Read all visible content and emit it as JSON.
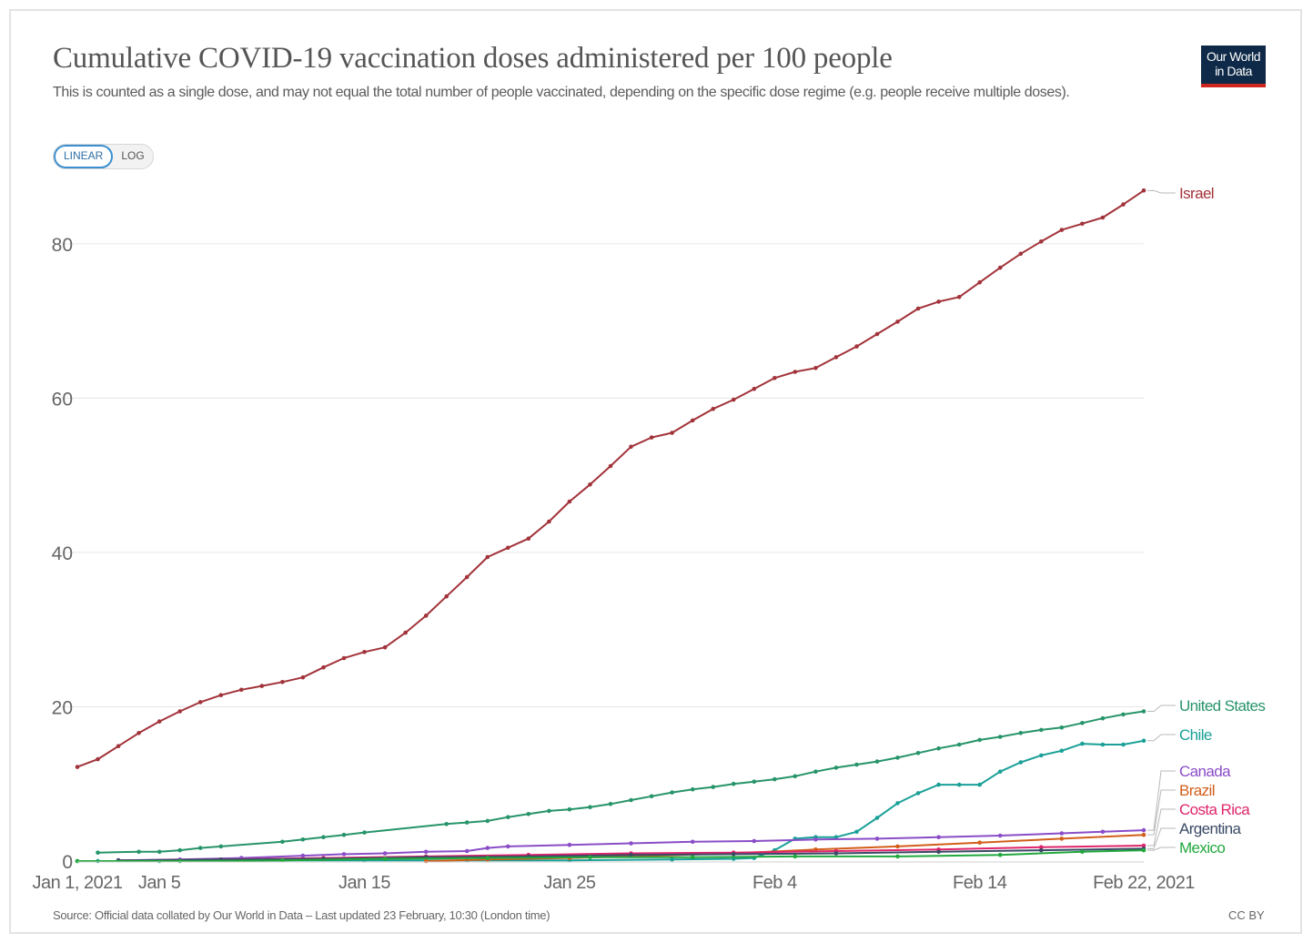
{
  "header": {
    "title": "Cumulative COVID-19 vaccination doses administered per 100 people",
    "subtitle": "This is counted as a single dose, and may not equal the total number of people vaccinated, depending on the specific dose regime (e.g. people receive multiple doses).",
    "logo_line1": "Our World",
    "logo_line2": "in Data"
  },
  "controls": {
    "linear_label": "LINEAR",
    "log_label": "LOG"
  },
  "footer": {
    "source": "Source: Official data collated by Our World in Data – Last updated 23 February, 10:30 (London time)",
    "license": "CC BY"
  },
  "colors": {
    "Israel": "#a2333a",
    "United States": "#27946a",
    "Chile": "#1aa097",
    "Canada": "#8a4dc7",
    "Brazil": "#d25e1a",
    "Costa Rica": "#e0246b",
    "Argentina": "#3a4a66",
    "Mexico": "#21a83d",
    "grid": "#e6e6e6",
    "axis_text": "#666666"
  },
  "chart_data": {
    "type": "line",
    "title": "Cumulative COVID-19 vaccination doses administered per 100 people",
    "xlabel": "",
    "ylabel": "",
    "ylim": [
      0,
      88
    ],
    "yticks": [
      0,
      20,
      40,
      60,
      80
    ],
    "xlim": [
      "2021-01-01",
      "2021-02-22"
    ],
    "xticks": [
      {
        "date": "2021-01-01",
        "label": "Jan 1, 2021"
      },
      {
        "date": "2021-01-05",
        "label": "Jan 5"
      },
      {
        "date": "2021-01-15",
        "label": "Jan 15"
      },
      {
        "date": "2021-01-25",
        "label": "Jan 25"
      },
      {
        "date": "2021-02-04",
        "label": "Feb 4"
      },
      {
        "date": "2021-02-14",
        "label": "Feb 14"
      },
      {
        "date": "2021-02-22",
        "label": "Feb 22, 2021"
      }
    ],
    "grid": true,
    "legend": "right",
    "scale_options": [
      "LINEAR",
      "LOG"
    ],
    "active_scale": "LINEAR",
    "series": [
      {
        "name": "Israel",
        "points": [
          [
            "2021-01-01",
            12.2
          ],
          [
            "2021-01-02",
            13.2
          ],
          [
            "2021-01-03",
            14.9
          ],
          [
            "2021-01-04",
            16.6
          ],
          [
            "2021-01-05",
            18.1
          ],
          [
            "2021-01-06",
            19.4
          ],
          [
            "2021-01-07",
            20.6
          ],
          [
            "2021-01-08",
            21.5
          ],
          [
            "2021-01-09",
            22.2
          ],
          [
            "2021-01-10",
            22.7
          ],
          [
            "2021-01-11",
            23.2
          ],
          [
            "2021-01-12",
            23.8
          ],
          [
            "2021-01-13",
            25.1
          ],
          [
            "2021-01-14",
            26.3
          ],
          [
            "2021-01-15",
            27.1
          ],
          [
            "2021-01-16",
            27.7
          ],
          [
            "2021-01-17",
            29.6
          ],
          [
            "2021-01-18",
            31.8
          ],
          [
            "2021-01-19",
            34.3
          ],
          [
            "2021-01-20",
            36.8
          ],
          [
            "2021-01-21",
            39.4
          ],
          [
            "2021-01-22",
            40.6
          ],
          [
            "2021-01-23",
            41.8
          ],
          [
            "2021-01-24",
            44.0
          ],
          [
            "2021-01-25",
            46.6
          ],
          [
            "2021-01-26",
            48.8
          ],
          [
            "2021-01-27",
            51.2
          ],
          [
            "2021-01-28",
            53.7
          ],
          [
            "2021-01-29",
            54.9
          ],
          [
            "2021-01-30",
            55.5
          ],
          [
            "2021-01-31",
            57.1
          ],
          [
            "2021-02-01",
            58.6
          ],
          [
            "2021-02-02",
            59.8
          ],
          [
            "2021-02-03",
            61.2
          ],
          [
            "2021-02-04",
            62.6
          ],
          [
            "2021-02-05",
            63.4
          ],
          [
            "2021-02-06",
            63.9
          ],
          [
            "2021-02-07",
            65.3
          ],
          [
            "2021-02-08",
            66.7
          ],
          [
            "2021-02-09",
            68.3
          ],
          [
            "2021-02-10",
            69.9
          ],
          [
            "2021-02-11",
            71.6
          ],
          [
            "2021-02-12",
            72.5
          ],
          [
            "2021-02-13",
            73.1
          ],
          [
            "2021-02-14",
            75.0
          ],
          [
            "2021-02-15",
            76.9
          ],
          [
            "2021-02-16",
            78.7
          ],
          [
            "2021-02-17",
            80.3
          ],
          [
            "2021-02-18",
            81.8
          ],
          [
            "2021-02-19",
            82.6
          ],
          [
            "2021-02-20",
            83.4
          ],
          [
            "2021-02-21",
            85.1
          ],
          [
            "2021-02-22",
            86.9
          ]
        ]
      },
      {
        "name": "United States",
        "points": [
          [
            "2021-01-02",
            1.1
          ],
          [
            "2021-01-04",
            1.2
          ],
          [
            "2021-01-05",
            1.2
          ],
          [
            "2021-01-06",
            1.4
          ],
          [
            "2021-01-07",
            1.7
          ],
          [
            "2021-01-08",
            1.9
          ],
          [
            "2021-01-11",
            2.5
          ],
          [
            "2021-01-12",
            2.8
          ],
          [
            "2021-01-13",
            3.1
          ],
          [
            "2021-01-14",
            3.4
          ],
          [
            "2021-01-15",
            3.7
          ],
          [
            "2021-01-19",
            4.8
          ],
          [
            "2021-01-20",
            5.0
          ],
          [
            "2021-01-21",
            5.2
          ],
          [
            "2021-01-22",
            5.7
          ],
          [
            "2021-01-23",
            6.1
          ],
          [
            "2021-01-24",
            6.5
          ],
          [
            "2021-01-25",
            6.7
          ],
          [
            "2021-01-26",
            7.0
          ],
          [
            "2021-01-27",
            7.4
          ],
          [
            "2021-01-28",
            7.9
          ],
          [
            "2021-01-29",
            8.4
          ],
          [
            "2021-01-30",
            8.9
          ],
          [
            "2021-01-31",
            9.3
          ],
          [
            "2021-02-01",
            9.6
          ],
          [
            "2021-02-02",
            10.0
          ],
          [
            "2021-02-03",
            10.3
          ],
          [
            "2021-02-04",
            10.6
          ],
          [
            "2021-02-05",
            11.0
          ],
          [
            "2021-02-06",
            11.6
          ],
          [
            "2021-02-07",
            12.1
          ],
          [
            "2021-02-08",
            12.5
          ],
          [
            "2021-02-09",
            12.9
          ],
          [
            "2021-02-10",
            13.4
          ],
          [
            "2021-02-11",
            14.0
          ],
          [
            "2021-02-12",
            14.6
          ],
          [
            "2021-02-13",
            15.1
          ],
          [
            "2021-02-14",
            15.7
          ],
          [
            "2021-02-15",
            16.1
          ],
          [
            "2021-02-16",
            16.6
          ],
          [
            "2021-02-17",
            17.0
          ],
          [
            "2021-02-18",
            17.3
          ],
          [
            "2021-02-19",
            17.9
          ],
          [
            "2021-02-20",
            18.5
          ],
          [
            "2021-02-21",
            19.0
          ],
          [
            "2021-02-22",
            19.4
          ]
        ]
      },
      {
        "name": "Chile",
        "points": [
          [
            "2021-01-01",
            0.0
          ],
          [
            "2021-01-02",
            0.0
          ],
          [
            "2021-01-05",
            0.0
          ],
          [
            "2021-01-10",
            0.1
          ],
          [
            "2021-01-15",
            0.1
          ],
          [
            "2021-01-20",
            0.1
          ],
          [
            "2021-01-25",
            0.1
          ],
          [
            "2021-01-30",
            0.2
          ],
          [
            "2021-02-02",
            0.3
          ],
          [
            "2021-02-03",
            0.4
          ],
          [
            "2021-02-04",
            1.4
          ],
          [
            "2021-02-05",
            2.9
          ],
          [
            "2021-02-06",
            3.1
          ],
          [
            "2021-02-07",
            3.1
          ],
          [
            "2021-02-08",
            3.8
          ],
          [
            "2021-02-09",
            5.6
          ],
          [
            "2021-02-10",
            7.5
          ],
          [
            "2021-02-11",
            8.8
          ],
          [
            "2021-02-12",
            9.9
          ],
          [
            "2021-02-13",
            9.9
          ],
          [
            "2021-02-14",
            9.9
          ],
          [
            "2021-02-15",
            11.6
          ],
          [
            "2021-02-16",
            12.8
          ],
          [
            "2021-02-17",
            13.7
          ],
          [
            "2021-02-18",
            14.3
          ],
          [
            "2021-02-19",
            15.2
          ],
          [
            "2021-02-20",
            15.1
          ],
          [
            "2021-02-21",
            15.1
          ],
          [
            "2021-02-22",
            15.6
          ]
        ]
      },
      {
        "name": "Canada",
        "points": [
          [
            "2021-01-03",
            0.1
          ],
          [
            "2021-01-06",
            0.2
          ],
          [
            "2021-01-09",
            0.4
          ],
          [
            "2021-01-12",
            0.7
          ],
          [
            "2021-01-14",
            0.9
          ],
          [
            "2021-01-16",
            1.0
          ],
          [
            "2021-01-18",
            1.2
          ],
          [
            "2021-01-20",
            1.3
          ],
          [
            "2021-01-21",
            1.7
          ],
          [
            "2021-01-22",
            1.9
          ],
          [
            "2021-01-25",
            2.1
          ],
          [
            "2021-01-28",
            2.3
          ],
          [
            "2021-01-31",
            2.5
          ],
          [
            "2021-02-03",
            2.6
          ],
          [
            "2021-02-06",
            2.8
          ],
          [
            "2021-02-09",
            2.9
          ],
          [
            "2021-02-12",
            3.1
          ],
          [
            "2021-02-15",
            3.3
          ],
          [
            "2021-02-18",
            3.6
          ],
          [
            "2021-02-20",
            3.8
          ],
          [
            "2021-02-22",
            4.0
          ]
        ]
      },
      {
        "name": "Brazil",
        "points": [
          [
            "2021-01-18",
            0.0
          ],
          [
            "2021-01-21",
            0.2
          ],
          [
            "2021-01-25",
            0.4
          ],
          [
            "2021-01-29",
            0.7
          ],
          [
            "2021-02-02",
            1.0
          ],
          [
            "2021-02-06",
            1.5
          ],
          [
            "2021-02-10",
            1.9
          ],
          [
            "2021-02-14",
            2.4
          ],
          [
            "2021-02-18",
            2.9
          ],
          [
            "2021-02-22",
            3.4
          ]
        ]
      },
      {
        "name": "Costa Rica",
        "points": [
          [
            "2021-01-03",
            0.1
          ],
          [
            "2021-01-08",
            0.2
          ],
          [
            "2021-01-13",
            0.4
          ],
          [
            "2021-01-18",
            0.6
          ],
          [
            "2021-01-23",
            0.8
          ],
          [
            "2021-01-28",
            1.0
          ],
          [
            "2021-02-02",
            1.1
          ],
          [
            "2021-02-07",
            1.3
          ],
          [
            "2021-02-12",
            1.5
          ],
          [
            "2021-02-17",
            1.8
          ],
          [
            "2021-02-22",
            2.0
          ]
        ]
      },
      {
        "name": "Argentina",
        "points": [
          [
            "2021-01-03",
            0.1
          ],
          [
            "2021-01-08",
            0.2
          ],
          [
            "2021-01-13",
            0.3
          ],
          [
            "2021-01-18",
            0.5
          ],
          [
            "2021-01-23",
            0.6
          ],
          [
            "2021-01-28",
            0.8
          ],
          [
            "2021-02-02",
            0.9
          ],
          [
            "2021-02-07",
            1.0
          ],
          [
            "2021-02-12",
            1.2
          ],
          [
            "2021-02-17",
            1.4
          ],
          [
            "2021-02-22",
            1.6
          ]
        ]
      },
      {
        "name": "Mexico",
        "points": [
          [
            "2021-01-01",
            0.0
          ],
          [
            "2021-01-06",
            0.0
          ],
          [
            "2021-01-11",
            0.1
          ],
          [
            "2021-01-16",
            0.3
          ],
          [
            "2021-01-21",
            0.4
          ],
          [
            "2021-01-26",
            0.5
          ],
          [
            "2021-01-31",
            0.5
          ],
          [
            "2021-02-05",
            0.6
          ],
          [
            "2021-02-10",
            0.6
          ],
          [
            "2021-02-15",
            0.8
          ],
          [
            "2021-02-19",
            1.2
          ],
          [
            "2021-02-22",
            1.4
          ]
        ]
      }
    ]
  }
}
